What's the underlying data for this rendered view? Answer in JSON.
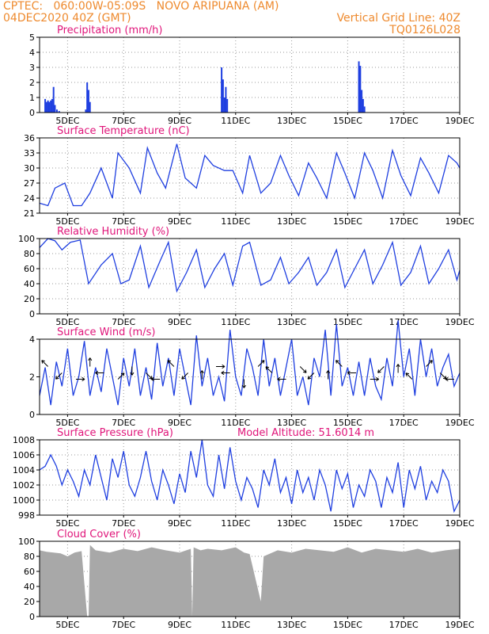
{
  "header": {
    "line1_left": "CPTEC:   060:00W-05:09S   NOVO ARIPUANA (AM)",
    "line2_left": "04DEC2020 40Z (GMT)",
    "line2_right": "Vertical Grid Line: 40Z",
    "line3_right": "TQ0126L028"
  },
  "colors": {
    "header": "#ee8a2e",
    "title": "#e0157a",
    "line": "#1f3fe0",
    "cloud": "#a8a8a8"
  },
  "x_axis": {
    "labels": [
      "5DEC",
      "7DEC",
      "9DEC",
      "11DEC",
      "13DEC",
      "15DEC",
      "17DEC",
      "19DEC"
    ],
    "label_days": [
      5,
      7,
      9,
      11,
      13,
      15,
      17,
      19
    ],
    "start_day": 4.0,
    "end_day": 19.0
  },
  "chart_data": [
    {
      "id": "precip",
      "type": "bar",
      "title": "Precipitation (mm/h)",
      "ylim": [
        0,
        5
      ],
      "yticks": [
        0,
        1,
        2,
        3,
        4,
        5
      ],
      "x": [
        4.2,
        4.25,
        4.3,
        4.35,
        4.4,
        4.45,
        4.5,
        4.55,
        4.62,
        4.7,
        5.65,
        5.7,
        5.75,
        5.8,
        10.5,
        10.55,
        10.6,
        10.65,
        10.7,
        15.4,
        15.45,
        15.5,
        15.55,
        15.6
      ],
      "values": [
        0.9,
        0.7,
        0.8,
        0.7,
        0.8,
        0.9,
        1.7,
        0.5,
        0.2,
        0.1,
        0.2,
        2.0,
        1.5,
        0.7,
        3.0,
        2.2,
        1.0,
        1.7,
        0.9,
        3.4,
        3.1,
        1.5,
        0.9,
        0.4
      ]
    },
    {
      "id": "temp",
      "type": "line",
      "title": "Surface Temperature (nC)",
      "ylim": [
        21,
        36
      ],
      "yticks": [
        21,
        24,
        27,
        30,
        33,
        36
      ],
      "x": [
        4.0,
        4.3,
        4.55,
        4.9,
        5.2,
        5.5,
        5.8,
        6.2,
        6.6,
        6.8,
        7.2,
        7.6,
        7.85,
        8.2,
        8.5,
        8.9,
        9.2,
        9.6,
        9.9,
        10.2,
        10.6,
        10.9,
        11.25,
        11.5,
        11.9,
        12.25,
        12.6,
        12.9,
        13.25,
        13.6,
        13.9,
        14.25,
        14.6,
        14.9,
        15.25,
        15.6,
        15.9,
        16.25,
        16.6,
        16.9,
        17.25,
        17.6,
        17.9,
        18.25,
        18.6,
        18.9,
        19.0
      ],
      "values": [
        23.0,
        22.5,
        26.0,
        27.0,
        22.5,
        22.5,
        25.0,
        30.0,
        24.0,
        33.0,
        30.0,
        25.0,
        34.0,
        29.0,
        26.0,
        34.8,
        28.0,
        26.0,
        32.5,
        30.5,
        29.5,
        29.5,
        25.0,
        32.5,
        25.0,
        27.0,
        32.5,
        28.5,
        24.5,
        31.0,
        28.0,
        24.0,
        33.0,
        29.0,
        24.0,
        33.0,
        29.5,
        24.0,
        33.5,
        28.5,
        24.5,
        32.0,
        29.0,
        25.0,
        32.5,
        31.0,
        30.0
      ]
    },
    {
      "id": "rh",
      "type": "line",
      "title": "Relative Humidity (%)",
      "ylim": [
        0,
        100
      ],
      "yticks": [
        0,
        20,
        40,
        60,
        80,
        100
      ],
      "x": [
        4.0,
        4.3,
        4.55,
        4.8,
        5.1,
        5.45,
        5.75,
        6.2,
        6.6,
        6.9,
        7.2,
        7.6,
        7.9,
        8.3,
        8.6,
        8.9,
        9.25,
        9.6,
        9.9,
        10.25,
        10.6,
        10.9,
        11.25,
        11.5,
        11.9,
        12.25,
        12.6,
        12.9,
        13.25,
        13.6,
        13.9,
        14.25,
        14.6,
        14.9,
        15.25,
        15.6,
        15.9,
        16.25,
        16.6,
        16.9,
        17.25,
        17.6,
        17.9,
        18.25,
        18.6,
        18.9,
        19.0
      ],
      "values": [
        88,
        100,
        97,
        85,
        95,
        98,
        40,
        65,
        80,
        40,
        45,
        90,
        35,
        70,
        95,
        30,
        55,
        85,
        35,
        60,
        80,
        38,
        90,
        95,
        38,
        45,
        75,
        40,
        55,
        75,
        38,
        55,
        85,
        35,
        60,
        85,
        40,
        65,
        95,
        38,
        55,
        90,
        40,
        60,
        85,
        45,
        58
      ]
    },
    {
      "id": "wind",
      "type": "line",
      "title": "Surface Wind (m/s)",
      "ylim": [
        0,
        4
      ],
      "yticks": [
        0,
        2,
        4
      ],
      "x": [
        4.0,
        4.2,
        4.4,
        4.6,
        4.8,
        5.0,
        5.2,
        5.4,
        5.6,
        5.8,
        6.0,
        6.2,
        6.4,
        6.6,
        6.8,
        7.0,
        7.2,
        7.4,
        7.6,
        7.8,
        8.0,
        8.2,
        8.4,
        8.6,
        8.8,
        9.0,
        9.2,
        9.4,
        9.6,
        9.8,
        10.0,
        10.2,
        10.4,
        10.6,
        10.8,
        11.0,
        11.2,
        11.4,
        11.6,
        11.8,
        12.0,
        12.2,
        12.4,
        12.6,
        12.8,
        13.0,
        13.2,
        13.4,
        13.6,
        13.8,
        14.0,
        14.2,
        14.4,
        14.6,
        14.8,
        15.0,
        15.2,
        15.4,
        15.6,
        15.8,
        16.0,
        16.2,
        16.4,
        16.6,
        16.8,
        17.0,
        17.2,
        17.4,
        17.6,
        17.8,
        18.0,
        18.2,
        18.4,
        18.6,
        18.8,
        19.0
      ],
      "values": [
        1.0,
        2.5,
        0.5,
        2.8,
        1.5,
        3.5,
        1.0,
        2.0,
        3.9,
        1.0,
        2.5,
        1.2,
        3.5,
        2.0,
        0.5,
        3.0,
        1.5,
        3.5,
        1.0,
        2.5,
        0.8,
        3.8,
        1.5,
        3.0,
        1.0,
        3.5,
        2.0,
        0.5,
        4.2,
        1.5,
        3.0,
        1.0,
        2.0,
        0.7,
        4.5,
        2.0,
        1.0,
        3.5,
        2.5,
        1.0,
        4.0,
        1.5,
        3.0,
        1.0,
        2.5,
        4.0,
        1.0,
        2.0,
        0.5,
        3.0,
        2.0,
        4.5,
        1.0,
        4.8,
        1.5,
        2.5,
        1.0,
        2.8,
        1.0,
        3.0,
        1.5,
        0.8,
        3.0,
        1.5,
        5.0,
        2.0,
        3.5,
        1.0,
        4.0,
        2.0,
        3.5,
        1.5,
        2.5,
        3.2,
        1.5,
        2.2
      ]
    },
    {
      "id": "pressure",
      "type": "line",
      "title": "Surface Pressure (hPa)",
      "annotation": "Model Altitude: 51.6014 m",
      "ylim": [
        998,
        1008
      ],
      "yticks": [
        998,
        1000,
        1002,
        1004,
        1006,
        1008
      ],
      "x": [
        4.0,
        4.2,
        4.4,
        4.6,
        4.8,
        5.0,
        5.2,
        5.4,
        5.6,
        5.8,
        6.0,
        6.2,
        6.4,
        6.6,
        6.8,
        7.0,
        7.2,
        7.4,
        7.6,
        7.8,
        8.0,
        8.2,
        8.4,
        8.6,
        8.8,
        9.0,
        9.2,
        9.4,
        9.6,
        9.8,
        10.0,
        10.2,
        10.4,
        10.6,
        10.8,
        11.0,
        11.2,
        11.4,
        11.6,
        11.8,
        12.0,
        12.2,
        12.4,
        12.6,
        12.8,
        13.0,
        13.2,
        13.4,
        13.6,
        13.8,
        14.0,
        14.2,
        14.4,
        14.6,
        14.8,
        15.0,
        15.2,
        15.4,
        15.6,
        15.8,
        16.0,
        16.2,
        16.4,
        16.6,
        16.8,
        17.0,
        17.2,
        17.4,
        17.6,
        17.8,
        18.0,
        18.2,
        18.4,
        18.6,
        18.8,
        19.0
      ],
      "values": [
        1004.0,
        1004.5,
        1006.0,
        1004.5,
        1002.0,
        1004.0,
        1002.5,
        1000.5,
        1004.0,
        1002.0,
        1006.0,
        1003.0,
        1000.0,
        1005.5,
        1003.0,
        1006.5,
        1002.0,
        1000.5,
        1003.0,
        1006.5,
        1002.5,
        1000.0,
        1004.0,
        1002.0,
        999.5,
        1003.5,
        1001.0,
        1006.5,
        1003.0,
        1008.0,
        1002.0,
        1000.5,
        1006.0,
        1001.5,
        1007.0,
        1002.5,
        1000.0,
        1003.0,
        1001.5,
        999.0,
        1004.0,
        1002.0,
        1005.5,
        1001.0,
        1003.0,
        999.5,
        1004.0,
        1001.0,
        1003.0,
        1000.0,
        1004.0,
        1002.0,
        998.5,
        1004.0,
        1001.5,
        1003.5,
        999.0,
        1002.0,
        1000.5,
        1004.0,
        1002.5,
        999.0,
        1003.0,
        1001.0,
        1005.0,
        999.0,
        1004.0,
        1001.5,
        1004.5,
        1000.0,
        1002.5,
        1001.0,
        1004.0,
        1002.5,
        998.5,
        1000.0
      ]
    },
    {
      "id": "cloud",
      "type": "area",
      "title": "Cloud Cover (%)",
      "ylim": [
        0,
        100
      ],
      "yticks": [
        0,
        20,
        40,
        60,
        80,
        100
      ],
      "x": [
        4.0,
        4.25,
        4.5,
        4.75,
        5.0,
        5.25,
        5.5,
        5.7,
        5.75,
        5.8,
        6.0,
        6.5,
        7.0,
        7.5,
        8.0,
        8.5,
        9.0,
        9.4,
        9.45,
        9.5,
        9.75,
        10.0,
        10.5,
        11.0,
        11.3,
        11.5,
        11.9,
        12.0,
        12.5,
        13.0,
        13.5,
        14.0,
        14.5,
        15.0,
        15.5,
        16.0,
        16.5,
        17.0,
        17.5,
        18.0,
        18.5,
        19.0
      ],
      "values": [
        88,
        86,
        85,
        84,
        80,
        85,
        87,
        0,
        0,
        95,
        88,
        85,
        90,
        87,
        92,
        88,
        85,
        90,
        0,
        92,
        88,
        90,
        88,
        92,
        85,
        83,
        20,
        80,
        88,
        85,
        90,
        88,
        86,
        92,
        85,
        90,
        88,
        86,
        90,
        85,
        88,
        90
      ]
    }
  ],
  "wind_arrows": {
    "x": [
      4.3,
      4.8,
      5.3,
      5.8,
      6.3,
      6.8,
      7.3,
      7.8,
      8.3,
      8.8,
      9.3,
      9.8,
      10.3,
      10.8,
      11.3,
      11.8,
      12.3,
      12.8,
      13.3,
      13.8,
      14.3,
      14.8,
      15.3,
      15.8,
      16.3,
      16.8,
      17.3,
      17.8,
      18.3,
      18.8
    ],
    "dir_deg": [
      135,
      225,
      0,
      90,
      180,
      45,
      270,
      315,
      180,
      135,
      225,
      90,
      0,
      180,
      270,
      45,
      135,
      180,
      315,
      225,
      90,
      135,
      180,
      0,
      225,
      90,
      135,
      45,
      315,
      180
    ]
  }
}
